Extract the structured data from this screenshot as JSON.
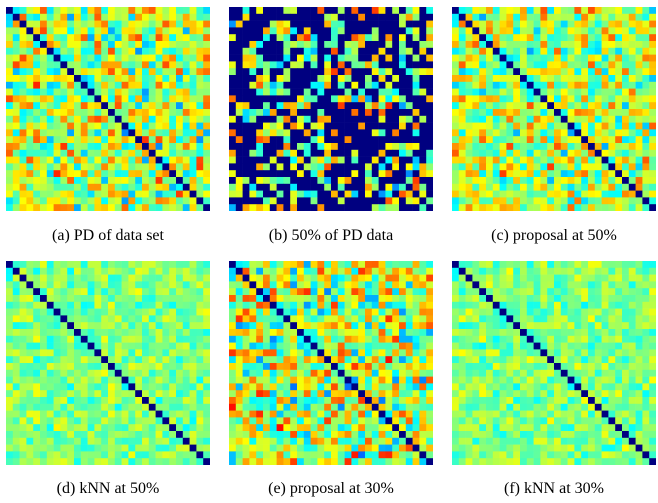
{
  "figure": {
    "captions": [
      "(a) PD of data set",
      "(b) 50% of PD data",
      "(c) proposal at 50%",
      "(d) kNN at 50%",
      "(e) proposal at 30%",
      "(f) kNN at 30%"
    ]
  },
  "chart_data": [
    {
      "type": "heatmap",
      "title": "(a) PD of data set",
      "rows": 30,
      "cols": 30,
      "colormap": "jet",
      "diagonal": "min",
      "missing_fraction": 0,
      "value_mean": 0.55,
      "value_spread": 0.22
    },
    {
      "type": "heatmap",
      "title": "(b) 50% of PD data",
      "rows": 30,
      "cols": 30,
      "colormap": "jet",
      "diagonal": "min",
      "missing_fraction": 0.5,
      "value_mean": 0.55,
      "value_spread": 0.22
    },
    {
      "type": "heatmap",
      "title": "(c) proposal at 50%",
      "rows": 30,
      "cols": 30,
      "colormap": "jet",
      "diagonal": "min",
      "missing_fraction": 0,
      "value_mean": 0.55,
      "value_spread": 0.2
    },
    {
      "type": "heatmap",
      "title": "(d) kNN at 50%",
      "rows": 30,
      "cols": 30,
      "colormap": "jet",
      "diagonal": "min",
      "missing_fraction": 0,
      "value_mean": 0.5,
      "value_spread": 0.1
    },
    {
      "type": "heatmap",
      "title": "(e) proposal at 30%",
      "rows": 30,
      "cols": 30,
      "colormap": "jet",
      "diagonal": "min",
      "missing_fraction": 0,
      "value_mean": 0.55,
      "value_spread": 0.24
    },
    {
      "type": "heatmap",
      "title": "(f) kNN at 30%",
      "rows": 30,
      "cols": 30,
      "colormap": "jet",
      "diagonal": "min",
      "missing_fraction": 0,
      "value_mean": 0.5,
      "value_spread": 0.1
    }
  ]
}
